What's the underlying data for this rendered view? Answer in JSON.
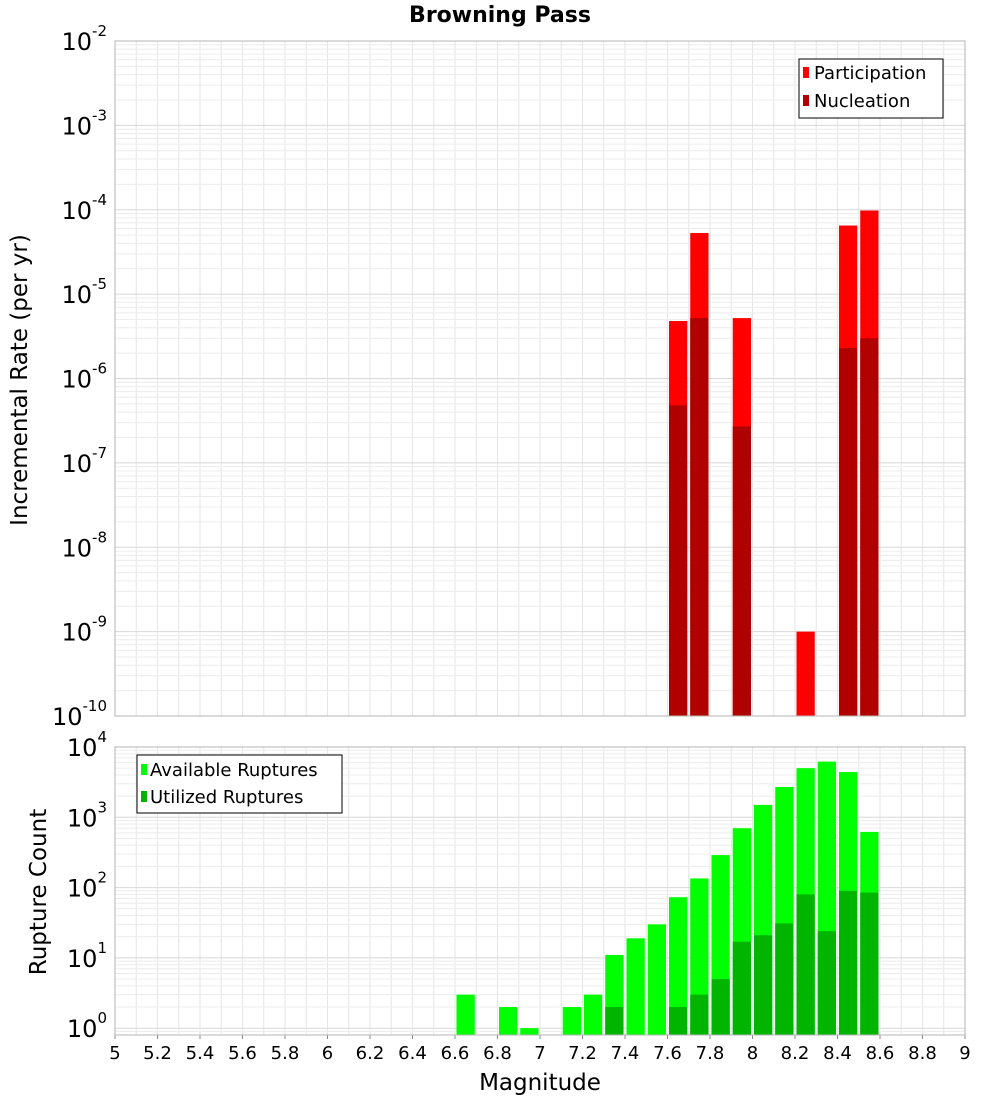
{
  "title": "Browning Pass",
  "chart_data": [
    {
      "type": "bar",
      "name": "rate-chart",
      "ylabel": "Incremental Rate (per yr)",
      "yscale": "log",
      "ylim": [
        1e-10,
        0.01
      ],
      "xlim": [
        5,
        9
      ],
      "y_tick_exponents": [
        "-10",
        "-9",
        "-8",
        "-7",
        "-6",
        "-5",
        "-4",
        "-3",
        "-2"
      ],
      "grid": true,
      "legend_position": "top-right",
      "colors": {
        "participation": "#ff0000",
        "nucleation": "#b00000"
      },
      "series": [
        {
          "name": "Participation",
          "x": [
            7.65,
            7.75,
            7.95,
            8.25,
            8.45,
            8.55
          ],
          "values": [
            4.8e-06,
            5.3e-05,
            5.2e-06,
            1e-09,
            6.5e-05,
            9.8e-05
          ]
        },
        {
          "name": "Nucleation",
          "x": [
            7.65,
            7.75,
            7.95,
            8.45,
            8.55
          ],
          "values": [
            4.8e-07,
            5.2e-06,
            2.7e-07,
            2.3e-06,
            3e-06
          ]
        }
      ]
    },
    {
      "type": "bar",
      "name": "count-chart",
      "ylabel": "Rupture Count",
      "xlabel": "Magnitude",
      "yscale": "log",
      "ylim": [
        0.8,
        10000
      ],
      "xlim": [
        5,
        9
      ],
      "x_ticks": [
        "5",
        "5.2",
        "5.4",
        "5.6",
        "5.8",
        "6",
        "6.2",
        "6.4",
        "6.6",
        "6.8",
        "7",
        "7.2",
        "7.4",
        "7.6",
        "7.8",
        "8",
        "8.2",
        "8.4",
        "8.6",
        "8.8",
        "9"
      ],
      "y_tick_exponents": [
        "0",
        "1",
        "2",
        "3",
        "4"
      ],
      "grid": true,
      "legend_position": "top-left",
      "colors": {
        "available": "#00ff00",
        "utilized": "#00b400"
      },
      "series": [
        {
          "name": "Available Ruptures",
          "x": [
            6.65,
            6.85,
            6.95,
            7.15,
            7.25,
            7.35,
            7.45,
            7.55,
            7.65,
            7.75,
            7.85,
            7.95,
            8.05,
            8.15,
            8.25,
            8.35,
            8.45,
            8.55
          ],
          "values": [
            3,
            2,
            1,
            2,
            3,
            11,
            19,
            30,
            73,
            135,
            290,
            700,
            1500,
            2700,
            5000,
            6200,
            4400,
            620
          ]
        },
        {
          "name": "Utilized Ruptures",
          "x": [
            7.35,
            7.65,
            7.75,
            7.85,
            7.95,
            8.05,
            8.15,
            8.25,
            8.35,
            8.45,
            8.55
          ],
          "values": [
            2,
            2,
            3,
            5,
            17,
            21,
            31,
            80,
            24,
            90,
            85
          ]
        }
      ]
    }
  ]
}
